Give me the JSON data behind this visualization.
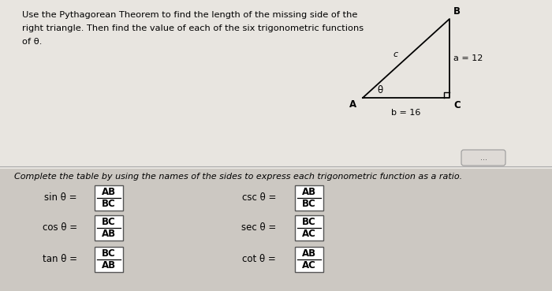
{
  "bg_color": "#ccc8c2",
  "top_bg": "#e8e5e0",
  "bottom_bg": "#ccc8c2",
  "title_line1": "Use the Pythagorean Theorem to find the length of the missing side of the",
  "title_line2": "right triangle. Then find the value of each of the six trigonometric functions",
  "title_line3": "of θ.",
  "tri_B": "B",
  "tri_A": "A",
  "tri_C": "C",
  "tri_c": "c",
  "tri_a": "a = 12",
  "tri_b": "b = 16",
  "tri_theta": "θ",
  "divider_text": "...",
  "bottom_instruction": "Complete the table by using the names of the sides to express each trigonometric function as a ratio.",
  "rows_left": [
    {
      "func": "sin θ =",
      "num": "AB",
      "den": "BC"
    },
    {
      "func": "cos θ =",
      "num": "BC",
      "den": "AB"
    },
    {
      "func": "tan θ =",
      "num": "BC",
      "den": "AB"
    }
  ],
  "rows_right": [
    {
      "func": "csc θ =",
      "num": "AB",
      "den": "BC"
    },
    {
      "func": "sec θ =",
      "num": "BC",
      "den": "AC"
    },
    {
      "func": "cot θ =",
      "num": "AB",
      "den": "AC"
    }
  ]
}
